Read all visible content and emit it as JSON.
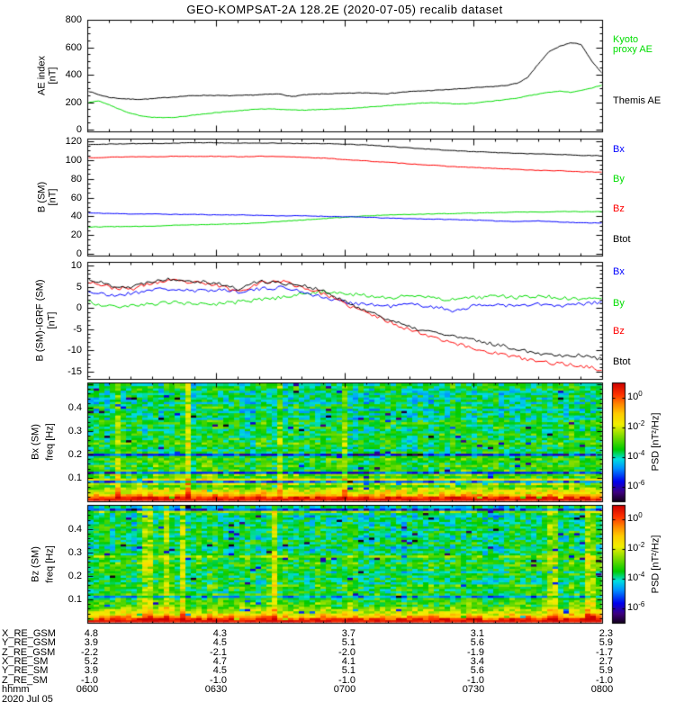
{
  "title": "GEO-KOMPSAT-2A 128.2E (2020-07-05) recalib dataset",
  "figure": {
    "bg": "#ffffff",
    "fg": "#000000"
  },
  "x_axis": {
    "tick_labels": [
      "0600",
      "0630",
      "0700",
      "0730",
      "0800"
    ],
    "minor_step_min": 5,
    "major_step_min": 30,
    "hhmm_label": "hhmm",
    "date_label": "2020 Jul 05"
  },
  "ephemeris_rows": [
    {
      "label": "X_RE_GSM",
      "values": [
        "4.8",
        "4.3",
        "3.7",
        "3.1",
        "2.3"
      ]
    },
    {
      "label": "Y_RE_GSM",
      "values": [
        "3.9",
        "4.5",
        "5.1",
        "5.6",
        "5.9"
      ]
    },
    {
      "label": "Z_RE_GSM",
      "values": [
        "-2.2",
        "-2.1",
        "-2.0",
        "-1.9",
        "-1.7"
      ]
    },
    {
      "label": "X_RE_SM",
      "values": [
        "5.2",
        "4.7",
        "4.1",
        "3.4",
        "2.7"
      ]
    },
    {
      "label": "Y_RE_SM",
      "values": [
        "3.9",
        "4.5",
        "5.1",
        "5.6",
        "5.9"
      ]
    },
    {
      "label": "Z_RE_SM",
      "values": [
        "-1.0",
        "-1.0",
        "-1.0",
        "-1.0",
        "-1.0"
      ]
    }
  ],
  "colorbar": {
    "label": "PSD [nT²/Hz]",
    "tick_exponents": [
      "0",
      "-2",
      "-4",
      "-6"
    ],
    "tick_values": [
      0,
      -2,
      -4,
      -6
    ],
    "clim_log10": [
      -7,
      1
    ]
  },
  "colormap": [
    [
      0.0,
      "#100018"
    ],
    [
      0.08,
      "#3f0080"
    ],
    [
      0.17,
      "#0000ee"
    ],
    [
      0.28,
      "#0090ff"
    ],
    [
      0.36,
      "#00e0e0"
    ],
    [
      0.44,
      "#00cc00"
    ],
    [
      0.55,
      "#7ddc00"
    ],
    [
      0.65,
      "#f0f000"
    ],
    [
      0.74,
      "#ffcc00"
    ],
    [
      0.82,
      "#ff8800"
    ],
    [
      0.9,
      "#ff3300"
    ],
    [
      1.0,
      "#cc0000"
    ]
  ],
  "chart_data": [
    {
      "type": "line",
      "panel": "ae_index",
      "ylabel_lines": [
        "AE index",
        "[nT]"
      ],
      "ylim": [
        0,
        800
      ],
      "yticks": [
        0,
        200,
        400,
        600,
        800
      ],
      "yminor": 50,
      "x_minutes_start": 0,
      "x_minutes_step": 2.5,
      "x_range_min": [
        0,
        120
      ],
      "series": [
        {
          "name": "Kyoto proxy AE",
          "color": "#00dd00",
          "noise": 2.0,
          "seed": 8,
          "sub": 5,
          "values": [
            200,
            212,
            185,
            150,
            122,
            103,
            93,
            90,
            92,
            100,
            110,
            119,
            127,
            134,
            141,
            147,
            152,
            155,
            150,
            147,
            145,
            148,
            151,
            153,
            156,
            161,
            167,
            172,
            178,
            184,
            190,
            196,
            200,
            197,
            192,
            190,
            196,
            205,
            213,
            222,
            232,
            248,
            262,
            275,
            283,
            275,
            290,
            305,
            330
          ]
        },
        {
          "name": "Themis AE",
          "color": "#000000",
          "noise": 2.5,
          "seed": 7,
          "sub": 5,
          "values": [
            285,
            258,
            238,
            230,
            225,
            224,
            228,
            235,
            241,
            247,
            251,
            253,
            252,
            250,
            251,
            254,
            257,
            261,
            263,
            243,
            255,
            260,
            263,
            265,
            267,
            270,
            271,
            268,
            265,
            274,
            280,
            284,
            288,
            292,
            297,
            302,
            308,
            313,
            318,
            325,
            340,
            380,
            480,
            570,
            610,
            635,
            625,
            500,
            410
          ]
        }
      ],
      "legend": [
        {
          "label": "Kyoto\nproxy AE",
          "color": "#00dd00"
        },
        {
          "label": "Themis AE",
          "color": "#000000"
        }
      ]
    },
    {
      "type": "line",
      "panel": "b_sm",
      "ylabel_lines": [
        "B (SM)",
        "[nT]"
      ],
      "ylim": [
        0,
        120
      ],
      "yticks": [
        0,
        20,
        40,
        60,
        80,
        100,
        120
      ],
      "yminor": 5,
      "x_minutes_start": 0,
      "x_minutes_step": 5,
      "x_range_min": [
        0,
        120
      ],
      "series": [
        {
          "name": "By",
          "color": "#00dd00",
          "noise": 0.3,
          "seed": 12,
          "sub": 8,
          "values": [
            29,
            29.5,
            29.5,
            30,
            31,
            31.5,
            32,
            32.5,
            33.5,
            35,
            36.5,
            38,
            39.5,
            41,
            42,
            42.5,
            43,
            43.5,
            44,
            44.5,
            45,
            45,
            45.5,
            45.5,
            45.5
          ]
        },
        {
          "name": "Bx",
          "color": "#0000ff",
          "noise": 0.3,
          "seed": 11,
          "sub": 8,
          "values": [
            44,
            43.5,
            43,
            43,
            42.5,
            42.5,
            42,
            42,
            41.5,
            41,
            41,
            40.5,
            40,
            39.5,
            38.5,
            38,
            37.5,
            37,
            36.5,
            35.5,
            35,
            35.5,
            34.5,
            33.5,
            33.5
          ]
        },
        {
          "name": "Bz",
          "color": "#ff0000",
          "noise": 0.3,
          "seed": 13,
          "sub": 8,
          "values": [
            103,
            103.5,
            104,
            104,
            104.5,
            104.5,
            104.5,
            104,
            104.5,
            104,
            103.5,
            102.5,
            101,
            99.5,
            98,
            96.5,
            95,
            93.5,
            92.5,
            91.5,
            90.5,
            89.5,
            89,
            88,
            87.5
          ]
        },
        {
          "name": "Btot",
          "color": "#000000",
          "noise": 0.3,
          "seed": 14,
          "sub": 8,
          "values": [
            117,
            117.5,
            118,
            118,
            118.5,
            119,
            119,
            118.5,
            118.5,
            118.5,
            118,
            118,
            117.5,
            116.5,
            115,
            113.5,
            112,
            110.5,
            109.5,
            108.5,
            107.5,
            107,
            106.5,
            105.5,
            105
          ]
        }
      ],
      "legend": [
        {
          "label": "Bx",
          "color": "#0000ff"
        },
        {
          "label": "By",
          "color": "#00dd00"
        },
        {
          "label": "Bz",
          "color": "#ff0000"
        },
        {
          "label": "Btot",
          "color": "#000000"
        }
      ]
    },
    {
      "type": "line",
      "panel": "b_sm_minus_igrf",
      "ylabel_lines": [
        "B (SM)-IGRF (SM)",
        "[nT]"
      ],
      "ylim": [
        -15,
        10
      ],
      "yticks": [
        -15,
        -10,
        -5,
        0,
        5,
        10
      ],
      "yminor": 1,
      "x_minutes_start": 0,
      "x_minutes_step": 5,
      "x_range_min": [
        0,
        120
      ],
      "series": [
        {
          "name": "By",
          "color": "#00dd00",
          "noise": 0.45,
          "seed": 24,
          "sub": 8,
          "values": [
            1.5,
            0.5,
            0.5,
            1,
            1.5,
            1,
            1,
            1.5,
            2,
            2.5,
            3.5,
            4,
            3.5,
            3,
            2.5,
            3,
            2.5,
            2,
            2.5,
            3,
            2.5,
            3,
            2.5,
            2,
            2.5
          ]
        },
        {
          "name": "Bx",
          "color": "#0000ff",
          "noise": 0.45,
          "seed": 21,
          "sub": 8,
          "values": [
            4,
            3,
            3.5,
            4.5,
            4.5,
            4,
            4.5,
            4,
            4.5,
            5,
            4,
            2.5,
            1.5,
            1,
            0.5,
            1,
            0.5,
            -0.5,
            0.5,
            1,
            0.5,
            1,
            0.5,
            1,
            1.5
          ]
        },
        {
          "name": "Bz",
          "color": "#ff0000",
          "noise": 0.45,
          "seed": 23,
          "sub": 8,
          "values": [
            6.5,
            5,
            4.5,
            6,
            6.5,
            6,
            5.5,
            4,
            6,
            6.5,
            5,
            3.5,
            1,
            -1,
            -3,
            -5,
            -6.5,
            -8,
            -9.5,
            -10.5,
            -11.5,
            -12.5,
            -13,
            -13.5,
            -14.5
          ]
        },
        {
          "name": "Btot",
          "color": "#000000",
          "noise": 0.45,
          "seed": 22,
          "sub": 8,
          "values": [
            7,
            5.5,
            5,
            6.5,
            7,
            6.5,
            6,
            4.5,
            6.5,
            6,
            5.5,
            4,
            1.5,
            -0.5,
            -2.5,
            -4.5,
            -5.5,
            -6.5,
            -7.5,
            -8.5,
            -9.5,
            -10.5,
            -11,
            -11,
            -12
          ]
        }
      ],
      "legend": [
        {
          "label": "Bx",
          "color": "#0000ff"
        },
        {
          "label": "By",
          "color": "#00dd00"
        },
        {
          "label": "Bz",
          "color": "#ff0000"
        },
        {
          "label": "Btot",
          "color": "#000000"
        }
      ]
    },
    {
      "type": "heatmap",
      "panel": "bx_psd_spectrogram",
      "ylabel_lines": [
        "Bx (SM)",
        "freq [Hz]"
      ],
      "freq_ticks": [
        0.1,
        0.2,
        0.3,
        0.4
      ],
      "freq_minor": 0.02,
      "freq_max": 0.504,
      "rows": 52,
      "cols": 95,
      "seed": 42,
      "noise": 1.6,
      "profile": [
        [
          0,
          0.8
        ],
        [
          0.015,
          0.2
        ],
        [
          0.03,
          -1.4
        ],
        [
          0.06,
          -2.7
        ],
        [
          0.15,
          -3.3
        ],
        [
          0.504,
          -3.8
        ]
      ],
      "speck_prob": 0.018,
      "speck_drop": 2.8,
      "row_band_prob": 0.08,
      "col_streak_prob": 0.07
    },
    {
      "type": "heatmap",
      "panel": "bz_psd_spectrogram",
      "ylabel_lines": [
        "Bz (SM)",
        "freq [Hz]"
      ],
      "freq_ticks": [
        0.1,
        0.2,
        0.3,
        0.4
      ],
      "freq_minor": 0.02,
      "freq_max": 0.504,
      "rows": 52,
      "cols": 95,
      "seed": 1337,
      "noise": 1.6,
      "profile": [
        [
          0,
          0.8
        ],
        [
          0.015,
          0.2
        ],
        [
          0.03,
          -1.4
        ],
        [
          0.06,
          -2.7
        ],
        [
          0.15,
          -3.3
        ],
        [
          0.504,
          -3.8
        ]
      ],
      "speck_prob": 0.018,
      "speck_drop": 2.8,
      "row_band_prob": 0.08,
      "col_streak_prob": 0.07
    }
  ]
}
